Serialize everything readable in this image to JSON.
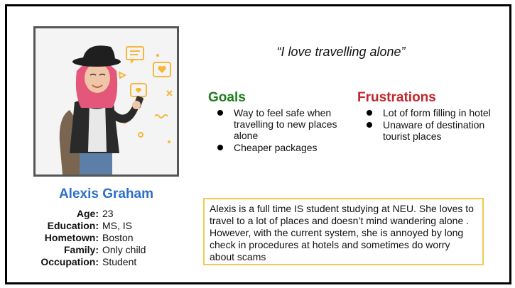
{
  "persona": {
    "name": "Alexis Graham",
    "quote": "“I love travelling alone”",
    "details": [
      {
        "label": "Age:",
        "value": "23"
      },
      {
        "label": "Education:",
        "value": "MS, IS"
      },
      {
        "label": "Hometown:",
        "value": "Boston"
      },
      {
        "label": "Family:",
        "value": "Only child"
      },
      {
        "label": "Occupation:",
        "value": "Student"
      }
    ]
  },
  "goals": {
    "heading": "Goals",
    "items": [
      "Way to feel safe when travelling to new places alone",
      "Cheaper packages"
    ]
  },
  "frustrations": {
    "heading": "Frustrations",
    "items": [
      "Lot of form filling in hotel",
      "Unaware of destination tourist places"
    ]
  },
  "bio": "Alexis is a full time IS student studying at NEU. She loves to travel to a lot of places and doesn’t mind wandering alone . However, with the current system, she is annoyed by long check in procedures at hotels and sometimes do worry about scams",
  "colors": {
    "name": "#2a6fc9",
    "goals_heading": "#1e7d1e",
    "frustrations_heading": "#c0272d",
    "bio_border": "#f2c94c",
    "accent": "#f5b83d"
  },
  "illustration": {
    "icons": [
      "chat-bubble-icon",
      "heart-bubble-icon",
      "triangle-icon",
      "cross-icon",
      "wave-icon",
      "dot-icon"
    ]
  }
}
